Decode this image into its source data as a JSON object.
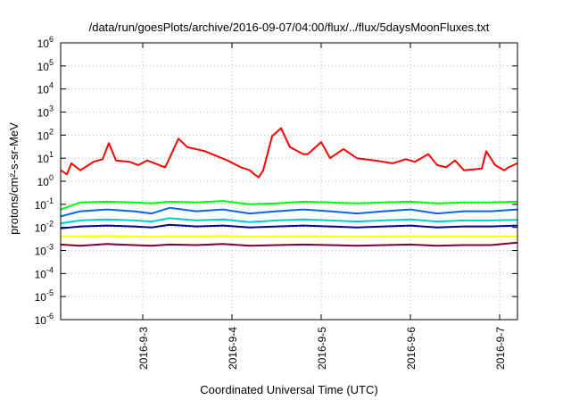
{
  "chart_data": {
    "type": "line",
    "title": "/data/run/goesPlots/archive/2016-09-07/04:00/flux/../flux/5daysMoonFluxes.txt",
    "xlabel": "Coordinated Universal Time (UTC)",
    "ylabel": "protons/cm²-s-sr-MeV",
    "x_ticks": [
      "2016-9-3",
      "2016-9-4",
      "2016-9-5",
      "2016-9-6",
      "2016-9-7"
    ],
    "x_tick_days": [
      3,
      4,
      5,
      6,
      7
    ],
    "xlim_days": [
      2.08,
      7.2
    ],
    "ylim_exponents": [
      -6,
      6
    ],
    "y_scale": "log",
    "y_tick_labels": [
      {
        "base": "10",
        "exp": "-6"
      },
      {
        "base": "10",
        "exp": "-5"
      },
      {
        "base": "10",
        "exp": "-4"
      },
      {
        "base": "10",
        "exp": "-3"
      },
      {
        "base": "10",
        "exp": "-2"
      },
      {
        "base": "10",
        "exp": "-1"
      },
      {
        "base": "10",
        "exp": "0"
      },
      {
        "base": "10",
        "exp": "1"
      },
      {
        "base": "10",
        "exp": "2"
      },
      {
        "base": "10",
        "exp": "3"
      },
      {
        "base": "10",
        "exp": "4"
      },
      {
        "base": "10",
        "exp": "5"
      },
      {
        "base": "10",
        "exp": "6"
      }
    ],
    "grid": true,
    "legend": "none",
    "series": [
      {
        "color": "#ff0000",
        "x": [
          2.08,
          2.15,
          2.2,
          2.3,
          2.45,
          2.55,
          2.62,
          2.7,
          2.85,
          2.95,
          3.05,
          3.25,
          3.3,
          3.4,
          3.5,
          3.7,
          3.95,
          4.1,
          4.2,
          4.25,
          4.3,
          4.35,
          4.45,
          4.55,
          4.65,
          4.8,
          4.85,
          5.0,
          5.1,
          5.25,
          5.4,
          5.6,
          5.8,
          5.95,
          6.05,
          6.2,
          6.3,
          6.4,
          6.5,
          6.6,
          6.8,
          6.85,
          6.95,
          7.05,
          7.1,
          7.2
        ],
        "y": [
          3,
          2,
          6,
          3,
          7,
          9,
          45,
          8,
          7,
          5,
          8,
          4,
          10,
          70,
          30,
          20,
          8,
          4,
          3,
          2,
          1.5,
          3,
          90,
          200,
          30,
          15,
          15,
          50,
          10,
          25,
          10,
          8,
          6,
          9,
          7,
          15,
          5,
          4,
          8,
          3,
          3.5,
          20,
          5,
          3,
          4,
          6
        ]
      },
      {
        "color": "#00ff00",
        "x": [
          2.08,
          2.3,
          2.6,
          2.9,
          3.1,
          3.3,
          3.6,
          3.9,
          4.2,
          4.5,
          4.8,
          5.1,
          5.4,
          5.7,
          6.0,
          6.3,
          6.6,
          6.9,
          7.2
        ],
        "y": [
          0.06,
          0.12,
          0.13,
          0.12,
          0.11,
          0.13,
          0.12,
          0.14,
          0.1,
          0.11,
          0.13,
          0.12,
          0.11,
          0.12,
          0.13,
          0.11,
          0.12,
          0.12,
          0.13
        ]
      },
      {
        "color": "#0066ff",
        "x": [
          2.08,
          2.3,
          2.6,
          2.9,
          3.1,
          3.3,
          3.6,
          3.9,
          4.2,
          4.5,
          4.8,
          5.1,
          5.4,
          5.7,
          6.0,
          6.3,
          6.6,
          6.9,
          7.2
        ],
        "y": [
          0.03,
          0.05,
          0.06,
          0.05,
          0.04,
          0.07,
          0.05,
          0.06,
          0.04,
          0.05,
          0.06,
          0.05,
          0.04,
          0.05,
          0.06,
          0.04,
          0.05,
          0.05,
          0.06
        ]
      },
      {
        "color": "#00cccc",
        "x": [
          2.08,
          2.3,
          2.6,
          2.9,
          3.1,
          3.3,
          3.6,
          3.9,
          4.2,
          4.5,
          4.8,
          5.1,
          5.4,
          5.7,
          6.0,
          6.3,
          6.6,
          6.9,
          7.2
        ],
        "y": [
          0.015,
          0.02,
          0.022,
          0.02,
          0.018,
          0.025,
          0.02,
          0.022,
          0.017,
          0.02,
          0.022,
          0.02,
          0.018,
          0.02,
          0.022,
          0.018,
          0.02,
          0.02,
          0.021
        ]
      },
      {
        "color": "#000099",
        "x": [
          2.08,
          2.3,
          2.6,
          2.9,
          3.1,
          3.3,
          3.6,
          3.9,
          4.2,
          4.5,
          4.8,
          5.1,
          5.4,
          5.7,
          6.0,
          6.3,
          6.6,
          6.9,
          7.2
        ],
        "y": [
          0.009,
          0.011,
          0.012,
          0.011,
          0.01,
          0.013,
          0.011,
          0.012,
          0.01,
          0.011,
          0.012,
          0.011,
          0.01,
          0.011,
          0.012,
          0.01,
          0.011,
          0.011,
          0.012
        ]
      },
      {
        "color": "#ffff00",
        "x": [
          2.08,
          2.3,
          2.6,
          2.9,
          3.1,
          3.3,
          3.6,
          3.9,
          4.2,
          4.5,
          4.8,
          5.1,
          5.4,
          5.7,
          6.0,
          6.3,
          6.6,
          6.9,
          7.2
        ],
        "y": [
          0.004,
          0.004,
          0.0042,
          0.004,
          0.0039,
          0.0041,
          0.004,
          0.0042,
          0.0039,
          0.004,
          0.0041,
          0.004,
          0.0039,
          0.004,
          0.0041,
          0.004,
          0.004,
          0.004,
          0.0041
        ]
      },
      {
        "color": "#800040",
        "x": [
          2.08,
          2.3,
          2.6,
          2.9,
          3.1,
          3.3,
          3.6,
          3.9,
          4.2,
          4.5,
          4.8,
          5.1,
          5.4,
          5.7,
          6.0,
          6.3,
          6.6,
          6.9,
          7.2
        ],
        "y": [
          0.0018,
          0.0016,
          0.0019,
          0.0017,
          0.0016,
          0.0018,
          0.0017,
          0.0019,
          0.0016,
          0.0017,
          0.0018,
          0.0017,
          0.0016,
          0.0017,
          0.0018,
          0.0016,
          0.0017,
          0.0017,
          0.0022
        ]
      }
    ]
  }
}
